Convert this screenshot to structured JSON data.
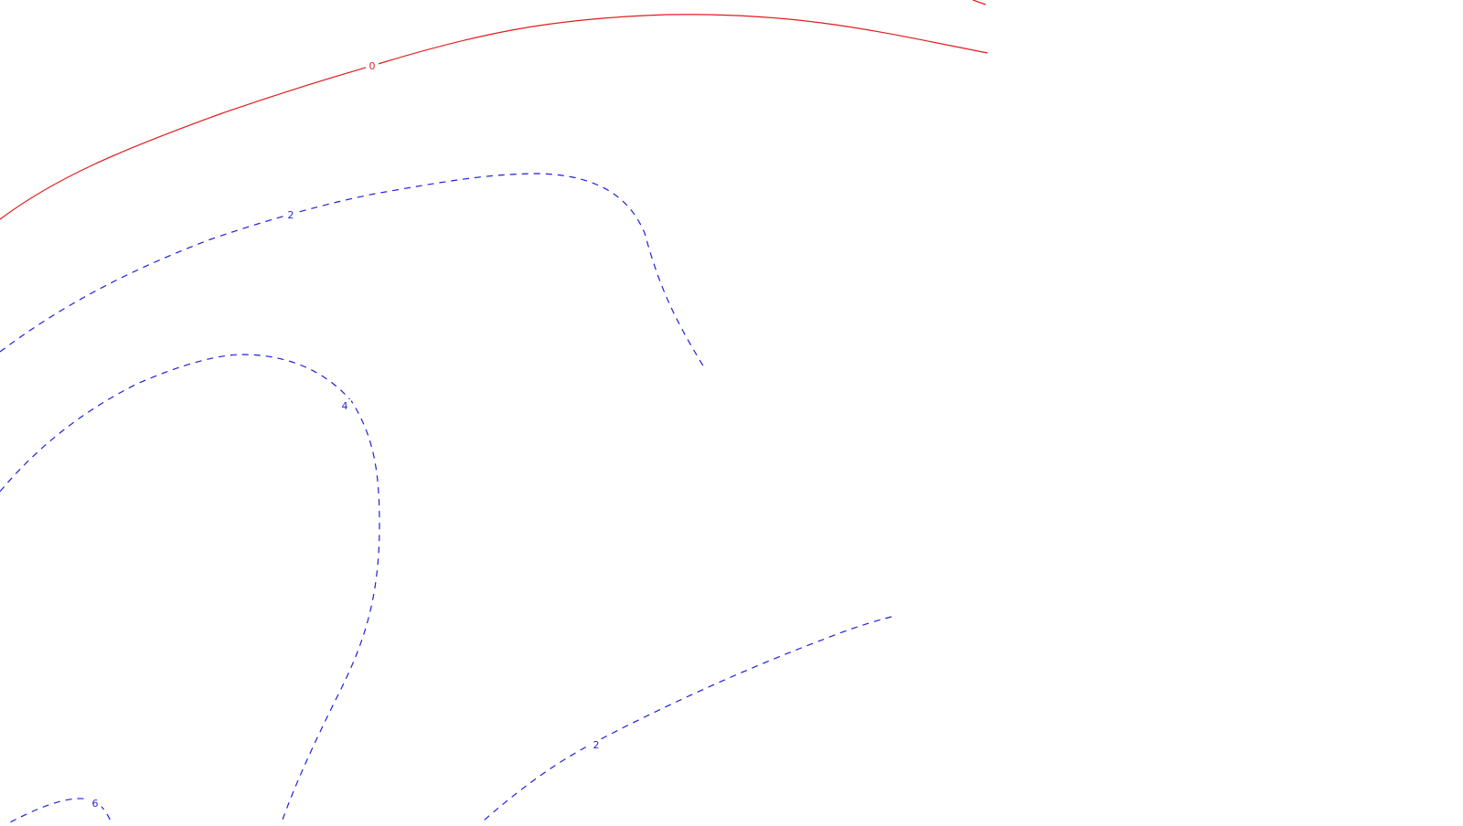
{
  "chart_data": {
    "type": "contour",
    "title": "",
    "xlabel": "",
    "ylabel": "",
    "grid": false,
    "legend": "none",
    "colors": {
      "zero": "#e31a1c",
      "positive": "#1f1fe0",
      "background": "#ffffff"
    },
    "levels": [
      {
        "value": 0,
        "label": "0",
        "style": "solid",
        "color": "#e31a1c"
      },
      {
        "value": 2,
        "label": "2",
        "style": "dashed",
        "color": "#1f1fe0"
      },
      {
        "value": 4,
        "label": "4",
        "style": "dashed",
        "color": "#1f1fe0"
      },
      {
        "value": 6,
        "label": "6",
        "style": "dashed",
        "color": "#1f1fe0"
      }
    ]
  }
}
